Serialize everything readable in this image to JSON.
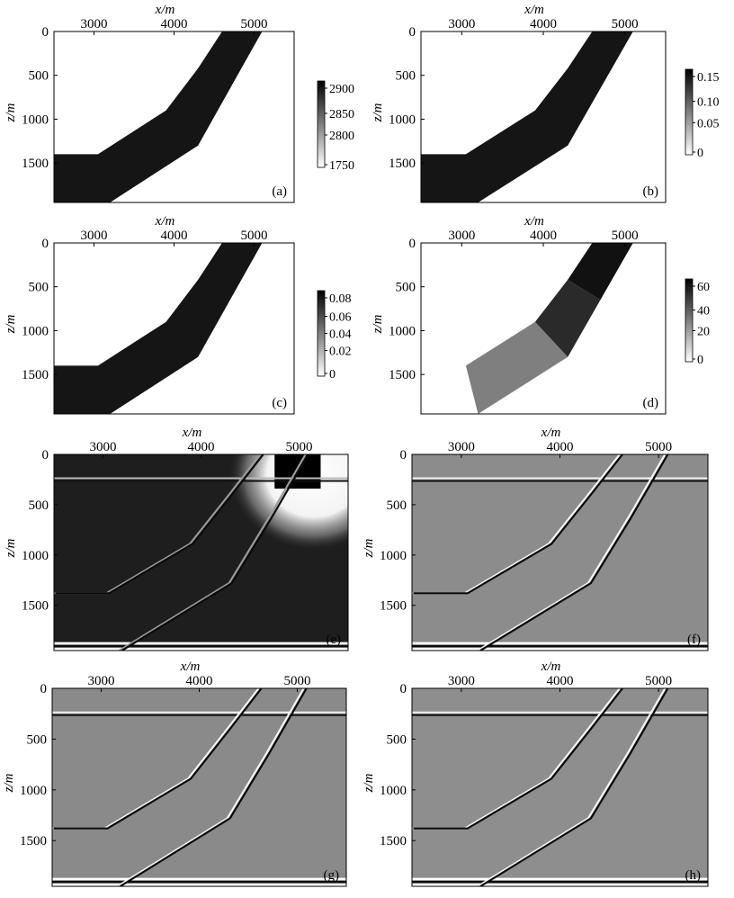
{
  "figure": {
    "axis_labels": {
      "x": "x/m",
      "z": "z/m"
    }
  },
  "chart_data": [
    {
      "id": "a",
      "type": "heatmap",
      "label": "(a)",
      "xlabel": "x/m",
      "ylabel": "z/m",
      "xticks": [
        3000,
        4000,
        5000
      ],
      "zticks": [
        0,
        500,
        1000,
        1500
      ],
      "xlim": [
        2500,
        5500
      ],
      "zlim": [
        0,
        1950
      ],
      "colorbar": {
        "ticks": [
          "2900",
          "2850",
          "2800",
          "1750"
        ]
      }
    },
    {
      "id": "b",
      "type": "heatmap",
      "label": "(b)",
      "xlabel": "x/m",
      "ylabel": "z/m",
      "xticks": [
        3000,
        4000,
        5000
      ],
      "zticks": [
        0,
        500,
        1000,
        1500
      ],
      "xlim": [
        2500,
        5500
      ],
      "zlim": [
        0,
        1950
      ],
      "colorbar": {
        "ticks": [
          "0.15",
          "0.10",
          "0.05",
          "0"
        ]
      }
    },
    {
      "id": "c",
      "type": "heatmap",
      "label": "(c)",
      "xlabel": "x/m",
      "ylabel": "z/m",
      "xticks": [
        3000,
        4000,
        5000
      ],
      "zticks": [
        0,
        500,
        1000,
        1500
      ],
      "xlim": [
        2500,
        5500
      ],
      "zlim": [
        0,
        1950
      ],
      "colorbar": {
        "ticks": [
          "0.08",
          "0.06",
          "0.04",
          "0.02",
          "0"
        ]
      }
    },
    {
      "id": "d",
      "type": "heatmap",
      "label": "(d)",
      "xlabel": "x/m",
      "ylabel": "z/m",
      "xticks": [
        3000,
        4000,
        5000
      ],
      "zticks": [
        0,
        500,
        1000,
        1500
      ],
      "xlim": [
        2500,
        5500
      ],
      "zlim": [
        0,
        1950
      ],
      "colorbar": {
        "ticks": [
          "60",
          "40",
          "20",
          "0"
        ]
      }
    },
    {
      "id": "e",
      "type": "heatmap",
      "label": "(e)",
      "xlabel": "x/m",
      "ylabel": "z/m",
      "xticks": [
        3000,
        4000,
        5000
      ],
      "zticks": [
        0,
        500,
        1000,
        1500
      ],
      "xlim": [
        2500,
        5500
      ],
      "zlim": [
        0,
        1950
      ]
    },
    {
      "id": "f",
      "type": "heatmap",
      "label": "(f)",
      "xlabel": "x/m",
      "ylabel": "z/m",
      "xticks": [
        3000,
        4000,
        5000
      ],
      "zticks": [
        0,
        500,
        1000,
        1500
      ],
      "xlim": [
        2500,
        5500
      ],
      "zlim": [
        0,
        1950
      ]
    },
    {
      "id": "g",
      "type": "heatmap",
      "label": "(g)",
      "xlabel": "x/m",
      "ylabel": "z/m",
      "xticks": [
        3000,
        4000,
        5000
      ],
      "zticks": [
        0,
        500,
        1000,
        1500
      ],
      "xlim": [
        2500,
        5500
      ],
      "zlim": [
        0,
        1950
      ]
    },
    {
      "id": "h",
      "type": "heatmap",
      "label": "(h)",
      "xlabel": "x/m",
      "ylabel": "z/m",
      "xticks": [
        3000,
        4000,
        5000
      ],
      "zticks": [
        0,
        500,
        1000,
        1500
      ],
      "xlim": [
        2500,
        5500
      ],
      "zlim": [
        0,
        1950
      ]
    }
  ]
}
